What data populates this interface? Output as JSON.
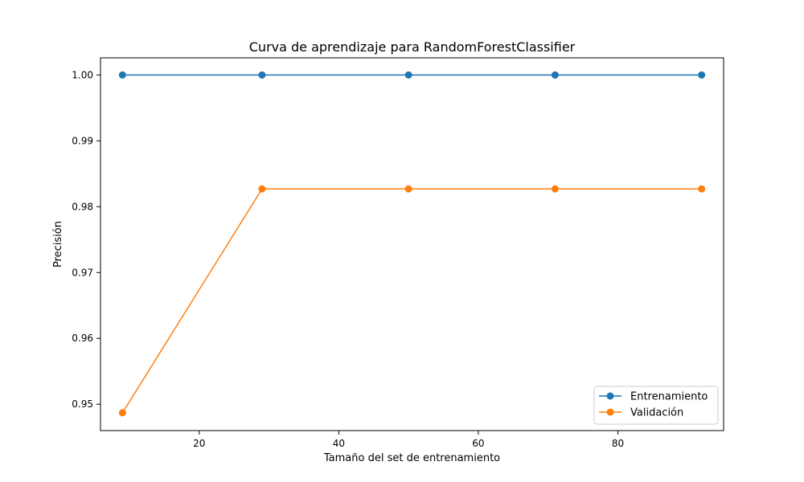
{
  "chart_data": {
    "type": "line",
    "title": "Curva de aprendizaje para RandomForestClassifier",
    "xlabel": "Tamaño del set de entrenamiento",
    "ylabel": "Precisión",
    "xlim": [
      5.85,
      95.15
    ],
    "ylim": [
      0.946,
      1.0026
    ],
    "xticks": [
      20,
      40,
      60,
      80
    ],
    "yticks": [
      0.95,
      0.96,
      0.97,
      0.98,
      0.99,
      1.0
    ],
    "xtick_labels": [
      "20",
      "40",
      "60",
      "80"
    ],
    "ytick_labels": [
      "0.95",
      "0.96",
      "0.97",
      "0.98",
      "0.99",
      "1.00"
    ],
    "grid": false,
    "legend_position": "bottom-right",
    "x": [
      9,
      29,
      50,
      71,
      92
    ],
    "series": [
      {
        "name": "Entrenamiento",
        "color": "#1f77b4",
        "marker": "circle",
        "values": [
          1.0,
          1.0,
          1.0,
          1.0,
          1.0
        ]
      },
      {
        "name": "Validación",
        "color": "#ff7f0e",
        "marker": "circle",
        "values": [
          0.9487,
          0.9827,
          0.9827,
          0.9827,
          0.9827
        ]
      }
    ]
  }
}
